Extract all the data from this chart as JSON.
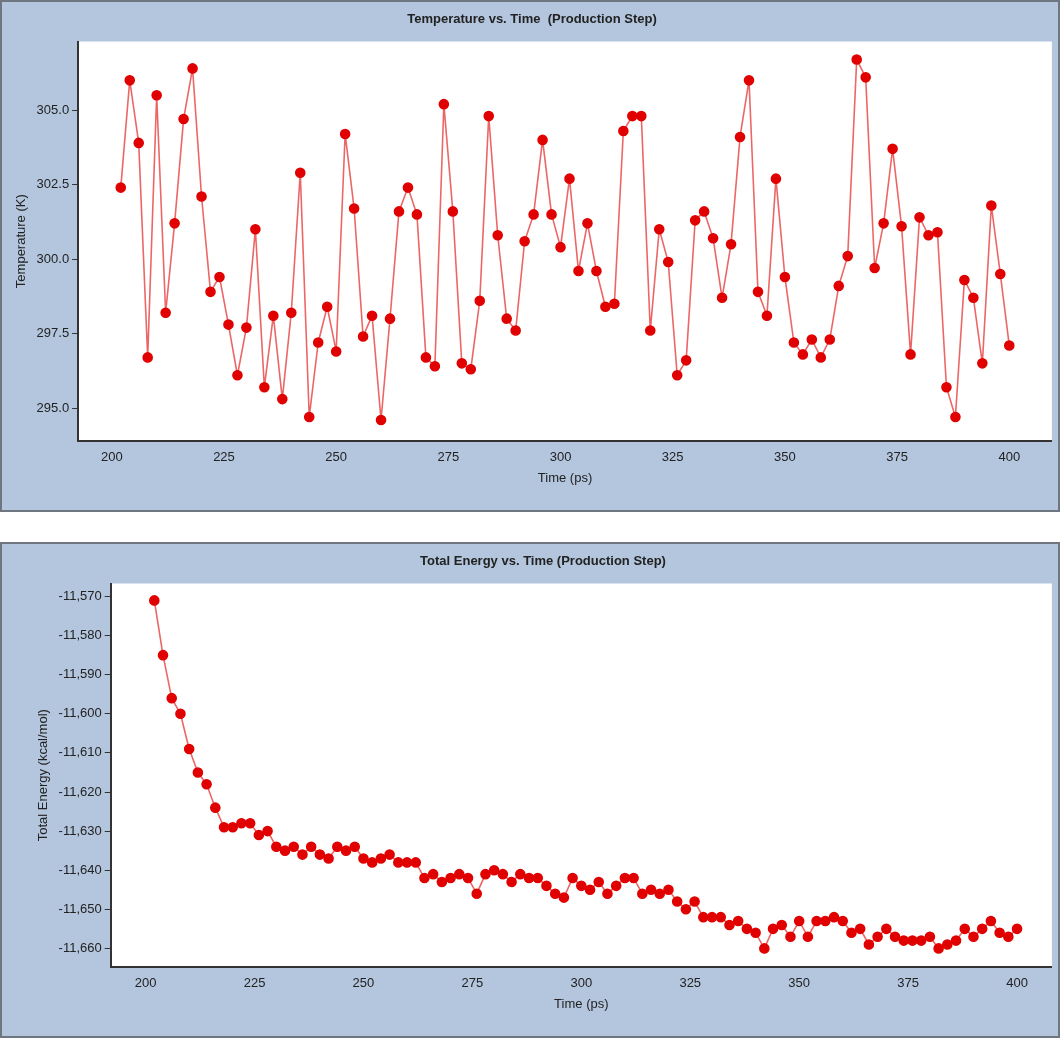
{
  "chart_data": [
    {
      "type": "line",
      "title": "Temperature vs. Time  (Production Step)",
      "xlabel": "Time (ps)",
      "ylabel": "Temperature (K)",
      "marker": "circle",
      "line_style": "solid",
      "grid": false,
      "x": [
        202,
        204,
        206,
        208,
        210,
        212,
        214,
        216,
        218,
        220,
        222,
        224,
        226,
        228,
        230,
        232,
        234,
        236,
        238,
        240,
        242,
        244,
        246,
        248,
        250,
        252,
        254,
        256,
        258,
        260,
        262,
        264,
        266,
        268,
        270,
        272,
        274,
        276,
        278,
        280,
        282,
        284,
        286,
        288,
        290,
        292,
        294,
        296,
        298,
        300,
        302,
        304,
        306,
        308,
        310,
        312,
        314,
        316,
        318,
        320,
        322,
        324,
        326,
        328,
        330,
        332,
        334,
        336,
        338,
        340,
        342,
        344,
        346,
        348,
        350,
        352,
        354,
        356,
        358,
        360,
        362,
        364,
        366,
        368,
        370,
        372,
        374,
        376,
        378,
        380,
        382,
        384,
        386,
        388,
        390,
        392,
        394,
        396,
        398,
        400
      ],
      "series": [
        {
          "color": "#e00000",
          "values": [
            302.4,
            306.0,
            303.9,
            296.7,
            305.5,
            298.2,
            301.2,
            304.7,
            306.4,
            302.1,
            298.9,
            299.4,
            297.8,
            296.1,
            297.7,
            301.0,
            295.7,
            298.1,
            295.3,
            298.2,
            302.9,
            294.7,
            297.2,
            298.4,
            296.9,
            304.2,
            301.7,
            297.4,
            298.1,
            294.6,
            298.0,
            301.6,
            302.4,
            301.5,
            296.7,
            296.4,
            305.2,
            301.6,
            296.5,
            296.3,
            298.6,
            304.8,
            300.8,
            298.0,
            297.6,
            300.6,
            301.5,
            304.0,
            301.5,
            300.4,
            302.7,
            299.6,
            301.2,
            299.6,
            298.4,
            298.5,
            304.3,
            304.8,
            304.8,
            297.6,
            301.0,
            299.9,
            296.1,
            296.6,
            301.3,
            301.6,
            300.7,
            298.7,
            300.5,
            304.1,
            306.0,
            298.9,
            298.1,
            302.7,
            299.4,
            297.2,
            296.8,
            297.3,
            296.7,
            297.3,
            299.1,
            300.1,
            306.7,
            306.1,
            299.7,
            301.2,
            303.7,
            301.1,
            296.8,
            301.4,
            300.8,
            300.9,
            295.7,
            294.7,
            299.3,
            298.7,
            296.5,
            301.8,
            299.5,
            297.1
          ]
        }
      ],
      "xlim": [
        192.5,
        409.5
      ],
      "xticks": [
        200,
        225,
        250,
        275,
        300,
        325,
        350,
        375,
        400
      ],
      "ylim": [
        293.9,
        307.3
      ],
      "yticks": [
        {
          "value": 295,
          "label": "295.0"
        },
        {
          "value": 297.5,
          "label": "297.5"
        },
        {
          "value": 300,
          "label": "300.0"
        },
        {
          "value": 302.5,
          "label": "302.5"
        },
        {
          "value": 305,
          "label": "305.0"
        }
      ]
    },
    {
      "type": "line",
      "title": "Total Energy vs. Time (Production Step)",
      "xlabel": "Time (ps)",
      "ylabel": "Total Energy (kcal/mol)",
      "marker": "circle",
      "line_style": "solid",
      "grid": false,
      "x": [
        202,
        204,
        206,
        208,
        210,
        212,
        214,
        216,
        218,
        220,
        222,
        224,
        226,
        228,
        230,
        232,
        234,
        236,
        238,
        240,
        242,
        244,
        246,
        248,
        250,
        252,
        254,
        256,
        258,
        260,
        262,
        264,
        266,
        268,
        270,
        272,
        274,
        276,
        278,
        280,
        282,
        284,
        286,
        288,
        290,
        292,
        294,
        296,
        298,
        300,
        302,
        304,
        306,
        308,
        310,
        312,
        314,
        316,
        318,
        320,
        322,
        324,
        326,
        328,
        330,
        332,
        334,
        336,
        338,
        340,
        342,
        344,
        346,
        348,
        350,
        352,
        354,
        356,
        358,
        360,
        362,
        364,
        366,
        368,
        370,
        372,
        374,
        376,
        378,
        380,
        382,
        384,
        386,
        388,
        390,
        392,
        394,
        396,
        398,
        400
      ],
      "series": [
        {
          "color": "#e00000",
          "values": [
            -11571,
            -11585,
            -11596,
            -11600,
            -11609,
            -11615,
            -11618,
            -11624,
            -11629,
            -11629,
            -11628,
            -11628,
            -11631,
            -11630,
            -11634,
            -11635,
            -11634,
            -11636,
            -11634,
            -11636,
            -11637,
            -11634,
            -11635,
            -11634,
            -11637,
            -11638,
            -11637,
            -11636,
            -11638,
            -11638,
            -11638,
            -11642,
            -11641,
            -11643,
            -11642,
            -11641,
            -11642,
            -11646,
            -11641,
            -11640,
            -11641,
            -11643,
            -11641,
            -11642,
            -11642,
            -11644,
            -11646,
            -11647,
            -11642,
            -11644,
            -11645,
            -11643,
            -11646,
            -11644,
            -11642,
            -11642,
            -11646,
            -11645,
            -11646,
            -11645,
            -11648,
            -11650,
            -11648,
            -11652,
            -11652,
            -11652,
            -11654,
            -11653,
            -11655,
            -11656,
            -11660,
            -11655,
            -11654,
            -11657,
            -11653,
            -11657,
            -11653,
            -11653,
            -11652,
            -11653,
            -11656,
            -11655,
            -11659,
            -11657,
            -11655,
            -11657,
            -11658,
            -11658,
            -11658,
            -11657,
            -11660,
            -11659,
            -11658,
            -11655,
            -11657,
            -11655,
            -11653,
            -11656,
            -11657,
            -11655
          ]
        }
      ],
      "xlim": [
        192,
        408
      ],
      "xticks": [
        200,
        225,
        250,
        275,
        300,
        325,
        350,
        375,
        400
      ],
      "ylim": [
        -11664.7,
        -11566.7
      ],
      "yticks": [
        {
          "value": -11660,
          "label": "-11,660"
        },
        {
          "value": -11650,
          "label": "-11,650"
        },
        {
          "value": -11640,
          "label": "-11,640"
        },
        {
          "value": -11630,
          "label": "-11,630"
        },
        {
          "value": -11620,
          "label": "-11,620"
        },
        {
          "value": -11610,
          "label": "-11,610"
        },
        {
          "value": -11600,
          "label": "-11,600"
        },
        {
          "value": -11590,
          "label": "-11,590"
        },
        {
          "value": -11580,
          "label": "-11,580"
        },
        {
          "value": -11570,
          "label": "-11,570"
        }
      ]
    }
  ]
}
